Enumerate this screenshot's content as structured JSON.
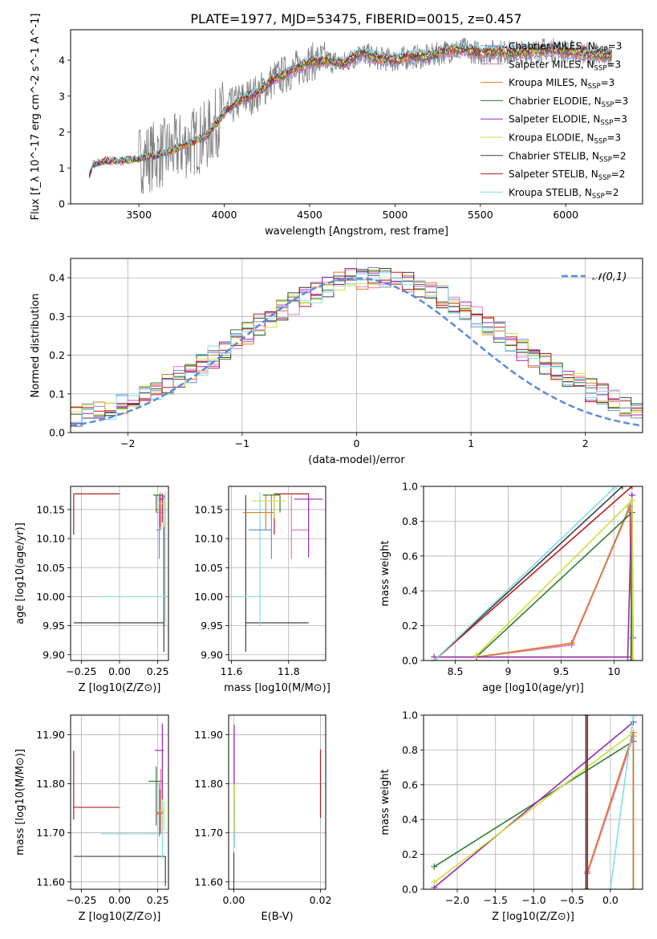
{
  "figure_title": "PLATE=1977, MJD=53475, FIBERID=0015, z=0.457",
  "series": [
    {
      "key": "chabrier_miles",
      "label": "Chabrier MILES, N",
      "n": "3",
      "color": "#6f8fcf"
    },
    {
      "key": "salpeter_miles",
      "label": "Salpeter MILES, N",
      "n": "3",
      "color": "#e377c2"
    },
    {
      "key": "kroupa_miles",
      "label": "Kroupa MILES, N",
      "n": "3",
      "color": "#e07b24"
    },
    {
      "key": "chabrier_elodie",
      "label": "Chabrier ELODIE, N",
      "n": "3",
      "color": "#2e7d32"
    },
    {
      "key": "salpeter_elodie",
      "label": "Salpeter ELODIE, N",
      "n": "3",
      "color": "#9c27b0"
    },
    {
      "key": "kroupa_elodie",
      "label": "Kroupa ELODIE, N",
      "n": "3",
      "color": "#cde03a"
    },
    {
      "key": "chabrier_stelib",
      "label": "Chabrier STELIB, N",
      "n": "2",
      "color": "#404040"
    },
    {
      "key": "salpeter_stelib",
      "label": "Salpeter STELIB, N",
      "n": "2",
      "color": "#b71c1c"
    },
    {
      "key": "kroupa_stelib",
      "label": "Kroupa STELIB, N",
      "n": "2",
      "color": "#80deea"
    }
  ],
  "legend_subscript": "SSP",
  "chart_data": [
    {
      "type": "line",
      "id": "spectrum",
      "xlabel": "wavelength [Angstrom, rest frame]",
      "ylabel": "Flux [f_λ 10^-17 erg cm^-2 s^-1 A^-1]",
      "xlim": [
        3100,
        6450
      ],
      "ylim": [
        0,
        4.85
      ],
      "xticks": [
        3500,
        4000,
        4500,
        5000,
        5500,
        6000
      ],
      "yticks": [
        0,
        1,
        2,
        3,
        4
      ],
      "model_x": [
        3210,
        3230,
        3300,
        3400,
        3500,
        3600,
        3700,
        3800,
        3900,
        4000,
        4100,
        4200,
        4300,
        4400,
        4500,
        4600,
        4700,
        4800,
        4900,
        5000,
        5100,
        5200,
        5300,
        5400,
        5500,
        5600,
        5700,
        5800,
        5900,
        6000,
        6100,
        6200
      ],
      "model_y": [
        0.8,
        1.1,
        1.2,
        1.2,
        1.25,
        1.35,
        1.5,
        1.7,
        1.9,
        2.55,
        2.9,
        3.1,
        3.5,
        3.7,
        3.95,
        4.0,
        3.9,
        4.2,
        4.05,
        4.0,
        4.1,
        4.1,
        4.25,
        4.3,
        4.2,
        4.25,
        4.2,
        4.25,
        4.3,
        4.25,
        4.2,
        4.15
      ],
      "data_color": "#808080",
      "legend_position": "upper right"
    },
    {
      "type": "histogram",
      "id": "residuals",
      "xlabel": "(data-model)/error",
      "ylabel": "Normed distribution",
      "xlim": [
        -2.5,
        2.5
      ],
      "ylim": [
        0,
        0.45
      ],
      "xticks": [
        -2,
        -1,
        0,
        1,
        2
      ],
      "yticks": [
        0.0,
        0.1,
        0.2,
        0.3,
        0.4
      ],
      "bin_width": 0.1,
      "normal_label": "𝒩(0,1)",
      "normal_color": "#5b8bd9",
      "legend_position": "upper right",
      "grid": true
    },
    {
      "type": "scatter",
      "id": "age_vs_z",
      "xlabel": "Z [log10(Z/Z⊙)]",
      "ylabel": "age [log10(age/yr)]",
      "xlim": [
        -0.32,
        0.32
      ],
      "ylim": [
        9.89,
        10.19
      ],
      "xticks": [
        -0.25,
        0.0,
        0.25
      ],
      "xticklabels": [
        "−0.25",
        "0.00",
        "0.25"
      ],
      "yticks": [
        9.9,
        9.95,
        10.0,
        10.05,
        10.1,
        10.15
      ],
      "points": [
        {
          "series": 7,
          "x": -0.3,
          "y": 10.177,
          "xerr": [
            0,
            0.3
          ],
          "yerr": [
            0.07,
            0
          ]
        },
        {
          "series": 6,
          "x": 0.29,
          "y": 9.955,
          "xerr": [
            0.59,
            0
          ],
          "yerr": [
            0.05,
            0.22
          ]
        },
        {
          "series": 8,
          "x": 0.3,
          "y": 10.0,
          "xerr": [
            0.42,
            0
          ],
          "yerr": [
            0.05,
            0.18
          ]
        },
        {
          "series": 0,
          "x": 0.26,
          "y": 10.115,
          "xerr": [
            0.02,
            0.01
          ],
          "yerr": [
            0.05,
            0.06
          ]
        },
        {
          "series": 1,
          "x": 0.27,
          "y": 10.145,
          "xerr": [
            0.03,
            0.01
          ],
          "yerr": [
            0.03,
            0.03
          ]
        },
        {
          "series": 2,
          "x": 0.265,
          "y": 10.15,
          "xerr": [
            0.02,
            0.01
          ],
          "yerr": [
            0.03,
            0.03
          ]
        },
        {
          "series": 3,
          "x": 0.24,
          "y": 10.175,
          "xerr": [
            0.02,
            0.04
          ],
          "yerr": [
            0.03,
            0.0
          ]
        },
        {
          "series": 4,
          "x": 0.28,
          "y": 10.168,
          "xerr": [
            0.02,
            0.01
          ],
          "yerr": [
            0.04,
            0.01
          ]
        },
        {
          "series": 5,
          "x": 0.29,
          "y": 10.16,
          "xerr": [
            0.03,
            0.01
          ],
          "yerr": [
            0.04,
            0.01
          ]
        }
      ]
    },
    {
      "type": "scatter",
      "id": "age_vs_mass",
      "xlabel": "mass [log10(M/M⊙)]",
      "ylabel": "",
      "xlim": [
        11.59,
        11.93
      ],
      "ylim": [
        9.89,
        10.19
      ],
      "xticks": [
        11.6,
        11.8
      ],
      "yticks": [
        9.9,
        9.95,
        10.0,
        10.05,
        10.1,
        10.15
      ],
      "points": [
        {
          "series": 7,
          "x": 11.75,
          "y": 10.177,
          "xerr": [
            0,
            0.12
          ],
          "yerr": [
            0.07,
            0
          ]
        },
        {
          "series": 6,
          "x": 11.65,
          "y": 9.955,
          "xerr": [
            0.0,
            0.22
          ],
          "yerr": [
            0.05,
            0.22
          ]
        },
        {
          "series": 8,
          "x": 11.7,
          "y": 10.0,
          "xerr": [
            0.1,
            0.02
          ],
          "yerr": [
            0.05,
            0.18
          ]
        },
        {
          "series": 0,
          "x": 11.74,
          "y": 10.115,
          "xerr": [
            0.08,
            0.0
          ],
          "yerr": [
            0.05,
            0.06
          ]
        },
        {
          "series": 1,
          "x": 11.81,
          "y": 10.115,
          "xerr": [
            0.0,
            0.06
          ],
          "yerr": [
            0.05,
            0.06
          ]
        },
        {
          "series": 2,
          "x": 11.72,
          "y": 10.145,
          "xerr": [
            0.08,
            0.03
          ],
          "yerr": [
            0.03,
            0.03
          ]
        },
        {
          "series": 3,
          "x": 11.77,
          "y": 10.175,
          "xerr": [
            0.06,
            0.0
          ],
          "yerr": [
            0.03,
            0.0
          ]
        },
        {
          "series": 4,
          "x": 11.87,
          "y": 10.168,
          "xerr": [
            0.05,
            0.05
          ],
          "yerr": [
            0.1,
            0.01
          ]
        },
        {
          "series": 5,
          "x": 11.75,
          "y": 10.165,
          "xerr": [
            0.08,
            0.04
          ],
          "yerr": [
            0.03,
            0.01
          ]
        }
      ]
    },
    {
      "type": "line",
      "id": "massweight_vs_age",
      "xlabel": "age [log10(age/yr)]",
      "ylabel": "mass weight",
      "xlim": [
        8.2,
        10.27
      ],
      "ylim": [
        0,
        1
      ],
      "xticks": [
        8.5,
        9.0,
        9.5,
        10.0
      ],
      "yticks": [
        0.0,
        0.2,
        0.4,
        0.6,
        0.8,
        1.0
      ],
      "grid": true,
      "lines": [
        {
          "series": 0,
          "x": [
            8.7,
            9.6,
            10.15,
            10.17
          ],
          "y": [
            0.02,
            0.09,
            0.89,
            0.0
          ]
        },
        {
          "series": 1,
          "x": [
            8.7,
            9.6,
            10.15,
            10.17
          ],
          "y": [
            0.02,
            0.09,
            0.88,
            0.0
          ]
        },
        {
          "series": 2,
          "x": [
            8.7,
            9.6,
            10.15,
            10.17
          ],
          "y": [
            0.02,
            0.1,
            0.88,
            0.0
          ]
        },
        {
          "series": 3,
          "x": [
            8.7,
            10.17,
            10.16
          ],
          "y": [
            0.02,
            0.85,
            0.0
          ]
        },
        {
          "series": 4,
          "x": [
            8.3,
            10.13,
            10.17,
            10.18
          ],
          "y": [
            0.02,
            0.02,
            0.95,
            0.13
          ]
        },
        {
          "series": 5,
          "x": [
            8.7,
            10.17,
            10.18
          ],
          "y": [
            0.03,
            0.92,
            0.0
          ]
        },
        {
          "series": 6,
          "x": [
            8.3,
            10.08
          ],
          "y": [
            0.0,
            1.0
          ]
        },
        {
          "series": 7,
          "x": [
            8.3,
            10.17
          ],
          "y": [
            0.0,
            1.0
          ]
        },
        {
          "series": 8,
          "x": [
            8.3,
            10.0
          ],
          "y": [
            0.0,
            0.99
          ]
        }
      ]
    },
    {
      "type": "scatter",
      "id": "mass_vs_z",
      "xlabel": "Z [log10(Z/Z⊙)]",
      "ylabel": "mass [log10(M/M⊙)]",
      "xlim": [
        -0.32,
        0.32
      ],
      "ylim": [
        11.585,
        11.94
      ],
      "xticks": [
        -0.25,
        0.0,
        0.25
      ],
      "xticklabels": [
        "−0.25",
        "0.00",
        "0.25"
      ],
      "yticks": [
        11.6,
        11.7,
        11.8,
        11.9
      ],
      "points": [
        {
          "series": 7,
          "x": -0.3,
          "y": 11.752,
          "xerr": [
            0,
            0.3
          ],
          "yerr": [
            0.025,
            0.115
          ]
        },
        {
          "series": 6,
          "x": 0.3,
          "y": 11.652,
          "xerr": [
            0.6,
            0
          ],
          "yerr": [
            0.06,
            0
          ]
        },
        {
          "series": 8,
          "x": 0.28,
          "y": 11.698,
          "xerr": [
            0.4,
            0
          ],
          "yerr": [
            0.05,
            0.1
          ]
        },
        {
          "series": 3,
          "x": 0.24,
          "y": 11.805,
          "xerr": [
            0.05,
            0.04
          ],
          "yerr": [
            0.09,
            0.03
          ]
        },
        {
          "series": 4,
          "x": 0.28,
          "y": 11.868,
          "xerr": [
            0.05,
            0.01
          ],
          "yerr": [
            0.1,
            0.055
          ]
        },
        {
          "series": 0,
          "x": 0.26,
          "y": 11.742,
          "xerr": [
            0.02,
            0.02
          ],
          "yerr": [
            0.05,
            0.06
          ]
        },
        {
          "series": 1,
          "x": 0.27,
          "y": 11.74,
          "xerr": [
            0.03,
            0.02
          ],
          "yerr": [
            0.04,
            0.09
          ]
        },
        {
          "series": 2,
          "x": 0.265,
          "y": 11.738,
          "xerr": [
            0.03,
            0.01
          ],
          "yerr": [
            0.04,
            0.05
          ]
        },
        {
          "series": 5,
          "x": 0.29,
          "y": 11.745,
          "xerr": [
            0.03,
            0.01
          ],
          "yerr": [
            0.04,
            0.02
          ]
        }
      ]
    },
    {
      "type": "scatter",
      "id": "mass_vs_ebv",
      "xlabel": "E(B-V)",
      "ylabel": "",
      "xlim": [
        -0.0012,
        0.0212
      ],
      "ylim": [
        11.585,
        11.94
      ],
      "xticks": [
        0.0,
        0.02
      ],
      "xticklabels": [
        "0.00",
        "0.02"
      ],
      "yticks": [
        11.6,
        11.7,
        11.8,
        11.9
      ],
      "points": [
        {
          "series": 7,
          "x": 0.02,
          "y": 11.8,
          "xerr": [
            0,
            0
          ],
          "yerr": [
            0.07,
            0.07
          ]
        },
        {
          "series": 4,
          "x": 0.0001,
          "y": 11.8,
          "xerr": [
            0,
            0
          ],
          "yerr": [
            0.08,
            0.12
          ]
        },
        {
          "series": 6,
          "x": 0.0,
          "y": 11.62,
          "xerr": [
            0,
            0
          ],
          "yerr": [
            0.04,
            0.04
          ]
        },
        {
          "series": 8,
          "x": 0.0002,
          "y": 11.72,
          "xerr": [
            0,
            0
          ],
          "yerr": [
            0.05,
            0.05
          ]
        },
        {
          "series": 5,
          "x": 0.0001,
          "y": 11.75,
          "xerr": [
            0,
            0
          ],
          "yerr": [
            0.05,
            0.05
          ]
        }
      ]
    },
    {
      "type": "line",
      "id": "massweight_vs_z",
      "xlabel": "Z [log10(Z/Z⊙)]",
      "ylabel": "mass weight",
      "xlim": [
        -2.44,
        0.42
      ],
      "ylim": [
        0,
        1
      ],
      "xticks": [
        -2.0,
        -1.5,
        -1.0,
        -0.5,
        0.0
      ],
      "xticklabels": [
        "−2.0",
        "−1.5",
        "−1.0",
        "−0.5",
        "0.0"
      ],
      "yticks": [
        0.0,
        0.2,
        0.4,
        0.6,
        0.8,
        1.0
      ],
      "grid": true,
      "lines": [
        {
          "series": 3,
          "x": [
            -2.3,
            0.3
          ],
          "y": [
            0.13,
            0.85
          ]
        },
        {
          "series": 4,
          "x": [
            -2.3,
            0.3
          ],
          "y": [
            0.01,
            0.96
          ]
        },
        {
          "series": 5,
          "x": [
            -2.3,
            0.3,
            0.3
          ],
          "y": [
            0.04,
            0.9,
            0.0
          ]
        },
        {
          "series": 0,
          "x": [
            -0.3,
            0.3,
            0.3
          ],
          "y": [
            0.09,
            0.88,
            0.0
          ]
        },
        {
          "series": 1,
          "x": [
            -0.3,
            0.3
          ],
          "y": [
            0.09,
            0.88
          ]
        },
        {
          "series": 2,
          "x": [
            -0.3,
            0.3,
            0.3
          ],
          "y": [
            0.1,
            0.9,
            0.0
          ]
        },
        {
          "series": 7,
          "x": [
            -0.3,
            -0.3
          ],
          "y": [
            0.0,
            1.0
          ]
        },
        {
          "series": 6,
          "x": [
            -0.32,
            -0.32
          ],
          "y": [
            0.0,
            1.0
          ]
        },
        {
          "series": 8,
          "x": [
            0.0,
            0.3
          ],
          "y": [
            0.0,
            0.99
          ]
        }
      ]
    }
  ]
}
